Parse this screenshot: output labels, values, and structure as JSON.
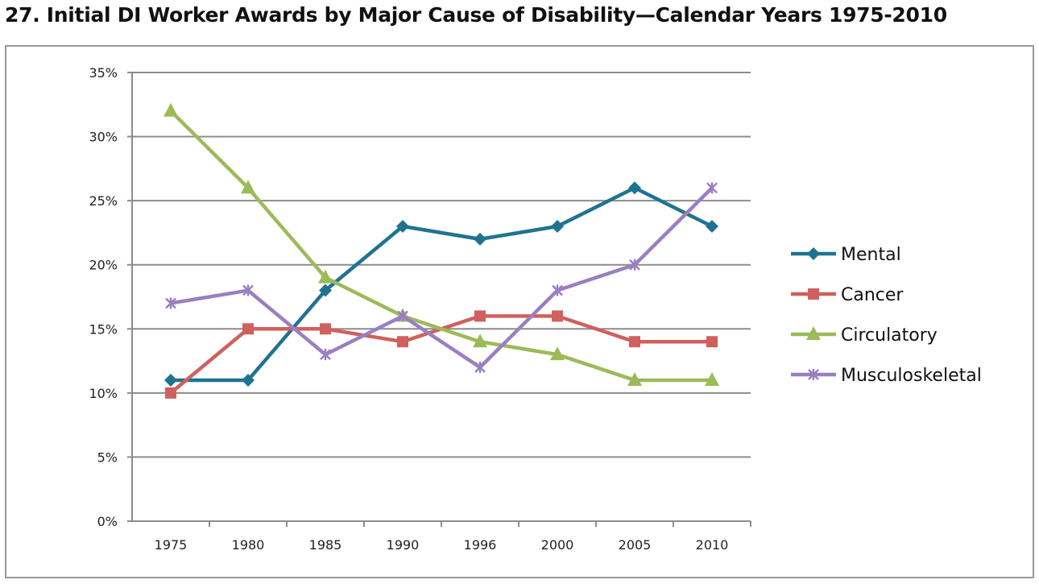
{
  "chart_data": {
    "type": "line",
    "title": "27.   Initial DI Worker Awards by Major Cause of Disability—Calendar Years 1975-2010",
    "xlabel": "",
    "ylabel": "",
    "categories": [
      "1975",
      "1980",
      "1985",
      "1990",
      "1996",
      "2000",
      "2005",
      "2010"
    ],
    "ylim": [
      0,
      35
    ],
    "yticks": [
      "0%",
      "5%",
      "10%",
      "15%",
      "20%",
      "25%",
      "30%",
      "35%"
    ],
    "grid": true,
    "legend": "right",
    "series": [
      {
        "name": "Mental",
        "marker": "diamond",
        "color": "#1f7391",
        "values": [
          11,
          11,
          18,
          23,
          22,
          23,
          26,
          23
        ]
      },
      {
        "name": "Cancer",
        "marker": "square",
        "color": "#d0605e",
        "values": [
          10,
          15,
          15,
          14,
          16,
          16,
          14,
          14
        ]
      },
      {
        "name": "Circulatory",
        "marker": "triangle",
        "color": "#9bbb59",
        "values": [
          32,
          26,
          19,
          16,
          14,
          13,
          11,
          11
        ]
      },
      {
        "name": "Musculoskeletal",
        "marker": "star",
        "color": "#9a7fc1",
        "values": [
          17,
          18,
          13,
          16,
          12,
          18,
          20,
          26
        ]
      }
    ]
  }
}
